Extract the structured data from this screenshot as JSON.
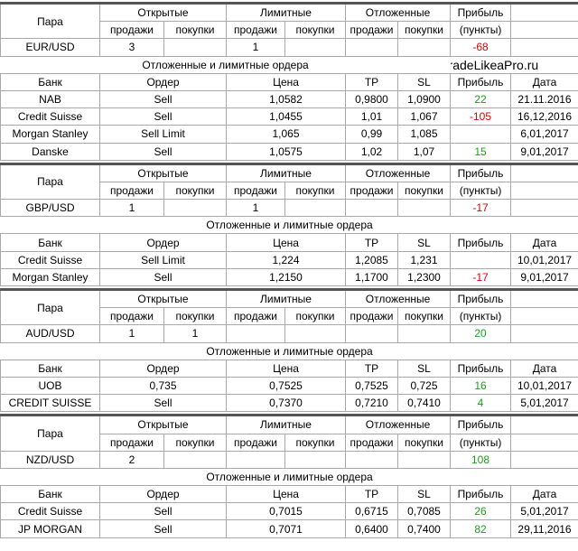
{
  "blocks": [
    {
      "summary": {
        "pair_header": "Пара",
        "open_header": "Открытые",
        "limit_header": "Лимитные",
        "pending_header": "Отложенные",
        "profit_header": "Прибыль",
        "sub_headers": [
          "продажи",
          "покупки",
          "продажи",
          "покупки",
          "продажи",
          "покупки"
        ],
        "profit_unit": "(пункты)",
        "pair": "EUR/USD",
        "values": [
          "3",
          null,
          "1",
          null,
          null,
          null
        ],
        "profit": "-68"
      },
      "orders_title": "Отложенные и лимитные ордера",
      "watermark": "TradeLikeaPro.ru",
      "orders": {
        "columns": [
          "Банк",
          "Ордер",
          "Цена",
          "TP",
          "SL",
          "Прибыль",
          "Дата"
        ],
        "rows": [
          [
            "NAB",
            "Sell",
            "1,0582",
            "0,9800",
            "1,0900",
            "22",
            "21.11.2016"
          ],
          [
            "Credit Suisse",
            "Sell",
            "1,0455",
            "1,01",
            "1,067",
            "-105",
            "16,12,2016"
          ],
          [
            "Morgan Stanley",
            "Sell Limit",
            "1,065",
            "0,99",
            "1,085",
            null,
            "6,01,2017"
          ],
          [
            "Danske",
            "Sell",
            "1,0575",
            "1,02",
            "1,07",
            "15",
            "9,01,2017"
          ]
        ]
      }
    },
    {
      "summary": {
        "pair_header": "Пара",
        "open_header": "Открытые",
        "limit_header": "Лимитные",
        "pending_header": "Отложенные",
        "profit_header": "Прибыль",
        "sub_headers": [
          "продажи",
          "покупки",
          "продажи",
          "покупки",
          "продажи",
          "покупки"
        ],
        "profit_unit": "(пункты)",
        "pair": "GBP/USD",
        "values": [
          "1",
          null,
          "1",
          null,
          null,
          null
        ],
        "profit": "-17"
      },
      "orders_title": "Отложенные и лимитные ордера",
      "orders": {
        "columns": [
          "Банк",
          "Ордер",
          "Цена",
          "TP",
          "SL",
          "Прибыль",
          "Дата"
        ],
        "rows": [
          [
            "Credit Suisse",
            "Sell Limit",
            "1,224",
            "1,2085",
            "1,231",
            null,
            "10,01,2017"
          ],
          [
            "Morgan Stanley",
            "Sell",
            "1,2150",
            "1,1700",
            "1,2300",
            "-17",
            "9,01,2017"
          ]
        ]
      }
    },
    {
      "summary": {
        "pair_header": "Пара",
        "open_header": "Открытые",
        "limit_header": "Лимитные",
        "pending_header": "Отложенные",
        "profit_header": "Прибыль",
        "sub_headers": [
          "продажи",
          "покупки",
          "продажи",
          "покупки",
          "продажи",
          "покупки"
        ],
        "profit_unit": "(пункты)",
        "pair": "AUD/USD",
        "values": [
          "1",
          "1",
          null,
          null,
          null,
          null
        ],
        "profit": "20"
      },
      "orders_title": "Отложенные и лимитные ордера",
      "orders": {
        "columns": [
          "Банк",
          "Ордер",
          "Цена",
          "TP",
          "SL",
          "Прибыль",
          "Дата"
        ],
        "rows": [
          [
            "UOB",
            "0,735",
            "0,7525",
            "0,7525",
            "0,725",
            "16",
            "10,01,2017"
          ],
          [
            "CREDIT SUISSE",
            "Sell",
            "0,7370",
            "0,7210",
            "0,7410",
            "4",
            "5,01,2017"
          ]
        ]
      }
    },
    {
      "summary": {
        "pair_header": "Пара",
        "open_header": "Открытые",
        "limit_header": "Лимитные",
        "pending_header": "Отложенные",
        "profit_header": "Прибыль",
        "sub_headers": [
          "продажи",
          "покупки",
          "продажи",
          "покупки",
          "продажи",
          "покупки"
        ],
        "profit_unit": "(пункты)",
        "pair": "NZD/USD",
        "values": [
          "2",
          null,
          null,
          null,
          null,
          null
        ],
        "profit": "108"
      },
      "orders_title": "Отложенные и лимитные ордера",
      "orders": {
        "columns": [
          "Банк",
          "Ордер",
          "Цена",
          "TP",
          "SL",
          "Прибыль",
          "Дата"
        ],
        "rows": [
          [
            "Credit Suisse",
            "Sell",
            "0,7015",
            "0,6715",
            "0,7085",
            "26",
            "5,01,2017"
          ],
          [
            "JP MORGAN",
            "Sell",
            "0,7071",
            "0,6400",
            "0,7400",
            "82",
            "29,11,2016"
          ]
        ]
      }
    }
  ]
}
